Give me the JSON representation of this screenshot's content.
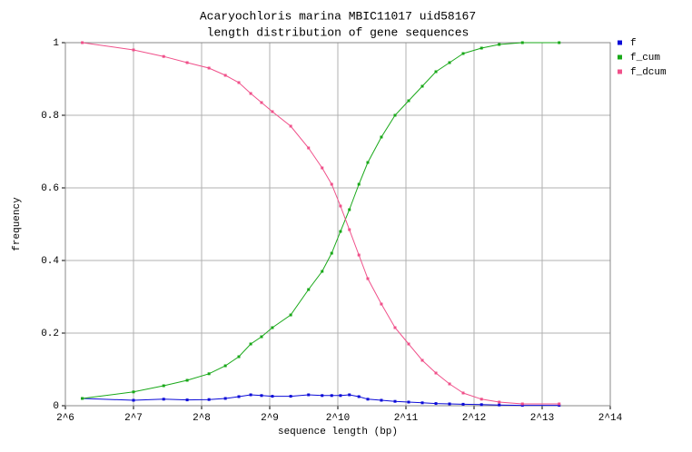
{
  "chart_data": {
    "type": "line",
    "title": "Acaryochloris marina MBIC11017 uid58167",
    "subtitle": "length distribution of gene sequences",
    "x_label": "sequence length (bp)",
    "y_label": "frequency",
    "x_scale": "log2",
    "x": [
      76,
      128,
      174,
      221,
      276,
      326,
      374,
      422,
      471,
      526,
      634,
      760,
      873,
      962,
      1052,
      1152,
      1269,
      1389,
      1595,
      1833,
      2105,
      2419,
      2779,
      3192,
      3666,
      4419,
      5292,
      6700,
      9740
    ],
    "series": [
      {
        "name": "f",
        "color": "#0a0ad8",
        "values": [
          0.02,
          0.015,
          0.018,
          0.016,
          0.017,
          0.02,
          0.025,
          0.03,
          0.028,
          0.026,
          0.026,
          0.03,
          0.028,
          0.028,
          0.028,
          0.03,
          0.025,
          0.018,
          0.015,
          0.012,
          0.01,
          0.008,
          0.006,
          0.005,
          0.004,
          0.003,
          0.002,
          0.001,
          0.001
        ]
      },
      {
        "name": "f_cum",
        "color": "#18a818",
        "values": [
          0.02,
          0.038,
          0.055,
          0.07,
          0.088,
          0.11,
          0.135,
          0.17,
          0.19,
          0.215,
          0.25,
          0.32,
          0.37,
          0.42,
          0.48,
          0.54,
          0.61,
          0.67,
          0.74,
          0.8,
          0.84,
          0.88,
          0.92,
          0.945,
          0.97,
          0.985,
          0.995,
          1.0,
          1.0
        ]
      },
      {
        "name": "f_dcum",
        "color": "#f0508a",
        "values": [
          1.0,
          0.98,
          0.962,
          0.945,
          0.93,
          0.91,
          0.89,
          0.86,
          0.835,
          0.81,
          0.77,
          0.71,
          0.655,
          0.61,
          0.55,
          0.485,
          0.415,
          0.35,
          0.28,
          0.215,
          0.17,
          0.125,
          0.09,
          0.06,
          0.035,
          0.018,
          0.01,
          0.005,
          0.005
        ]
      }
    ],
    "xlim": [
      64,
      16384
    ],
    "xticks": [
      {
        "value": 64,
        "label": "2^6"
      },
      {
        "value": 128,
        "label": "2^7"
      },
      {
        "value": 256,
        "label": "2^8"
      },
      {
        "value": 512,
        "label": "2^9"
      },
      {
        "value": 1024,
        "label": "2^10"
      },
      {
        "value": 2048,
        "label": "2^11"
      },
      {
        "value": 4096,
        "label": "2^12"
      },
      {
        "value": 8192,
        "label": "2^13"
      },
      {
        "value": 16384,
        "label": "2^14"
      }
    ],
    "ylim": [
      0,
      1
    ],
    "yticks": [
      0,
      0.2,
      0.4,
      0.6,
      0.8,
      1
    ],
    "grid": true,
    "legend": "top-right"
  }
}
